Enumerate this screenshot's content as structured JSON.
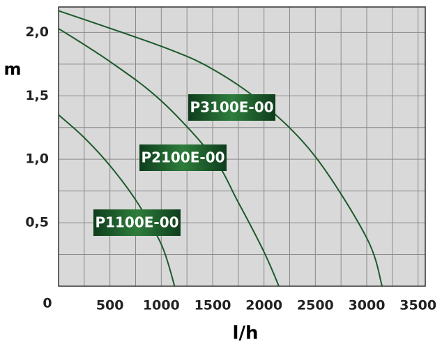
{
  "chart_data": {
    "type": "line",
    "x_label": "l/h",
    "y_label": "m",
    "xlim": [
      0,
      3570
    ],
    "ylim": [
      0,
      2.2
    ],
    "xticks": [
      500,
      1000,
      1500,
      2000,
      2500,
      3000,
      3500
    ],
    "yticks": [
      {
        "value": 0,
        "label": "0"
      },
      {
        "value": 0.5,
        "label": "0,5"
      },
      {
        "value": 1,
        "label": "1,0"
      },
      {
        "value": 1.5,
        "label": "1,5"
      },
      {
        "value": 2,
        "label": "2,0"
      }
    ],
    "xgrid": [
      250,
      500,
      750,
      1000,
      1250,
      1500,
      1750,
      2000,
      2250,
      2500,
      2750,
      3000,
      3250,
      3500
    ],
    "ygrid": [
      0.25,
      0.5,
      0.75,
      1,
      1.25,
      1.5,
      1.75,
      2
    ],
    "grid": true,
    "series": [
      {
        "name": "P1100E-00",
        "color": "#1d5a2b",
        "x": [
          0,
          250,
          500,
          750,
          1000,
          1130
        ],
        "values": [
          1.35,
          1.17,
          0.95,
          0.68,
          0.33,
          0
        ]
      },
      {
        "name": "P2100E-00",
        "color": "#1d5a2b",
        "x": [
          0,
          500,
          1000,
          1500,
          1750,
          2000,
          2145
        ],
        "values": [
          2.03,
          1.77,
          1.46,
          1.02,
          0.66,
          0.27,
          0
        ]
      },
      {
        "name": "P3100E-00",
        "color": "#1d5a2b",
        "x": [
          0,
          1000,
          1500,
          2000,
          2500,
          3000,
          3150
        ],
        "values": [
          2.17,
          1.89,
          1.71,
          1.43,
          1.02,
          0.38,
          0
        ]
      }
    ]
  }
}
